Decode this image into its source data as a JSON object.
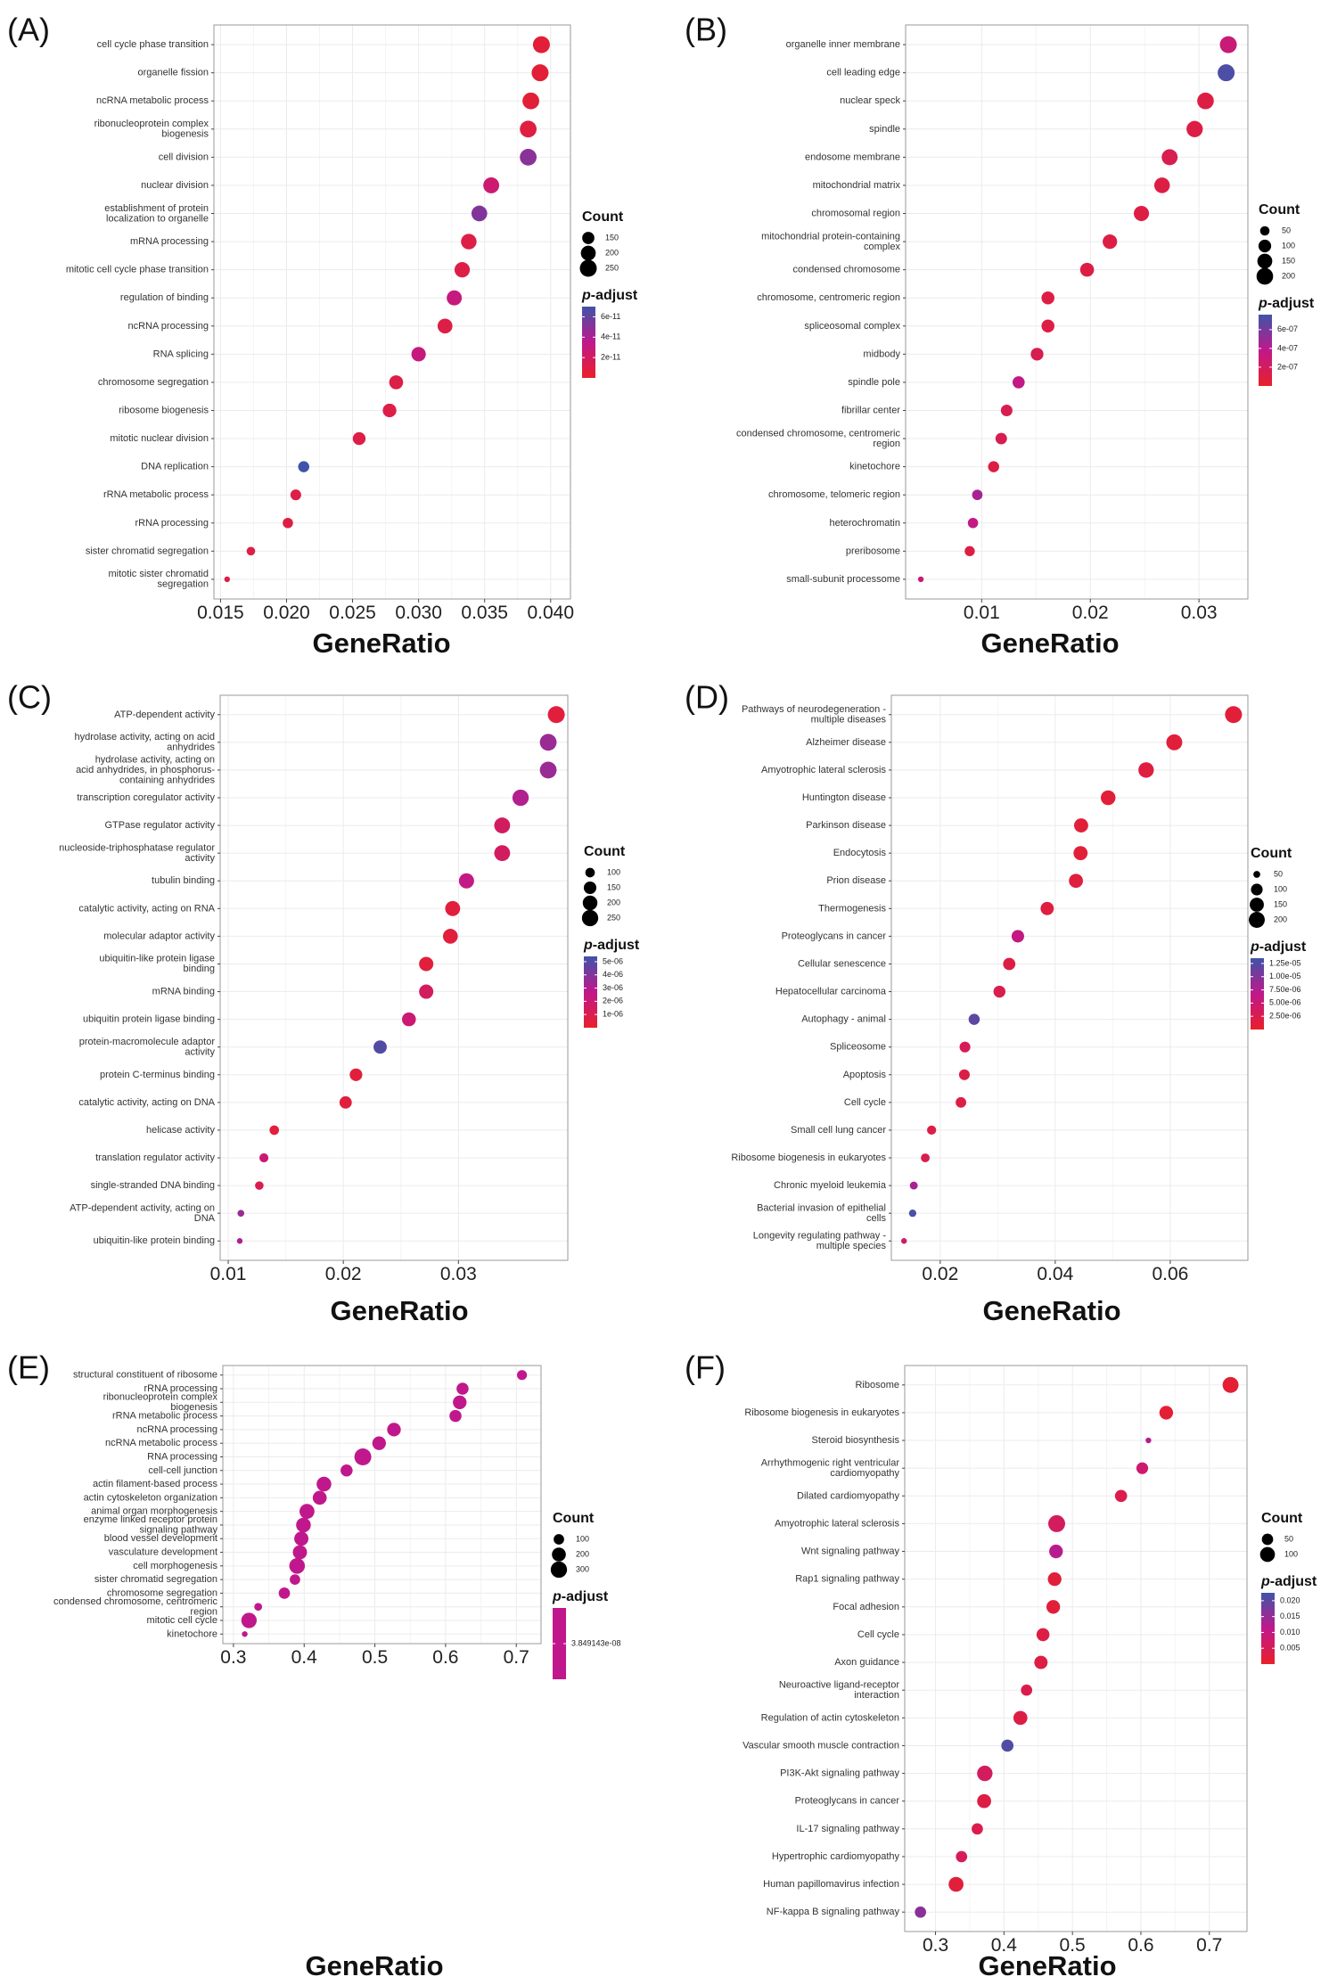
{
  "colors": {
    "low": "#e8202a",
    "mid": "#c0188c",
    "high": "#3f54a8",
    "grid": "#ebebeb",
    "frame": "#9a9a9a"
  },
  "legend": {
    "count_title": "Count",
    "p_title_italic": "p",
    "p_title_rest": "-adjust"
  },
  "chart_data": [
    {
      "type": "scatter",
      "panel_label": "(A)",
      "xlabel": "GeneRatio",
      "xlim": [
        0.0145,
        0.0415
      ],
      "xticks": [
        0.015,
        0.02,
        0.025,
        0.03,
        0.035,
        0.04
      ],
      "xtick_labels": [
        "0.015",
        "0.020",
        "0.025",
        "0.030",
        "0.035",
        "0.040"
      ],
      "categories": [
        [
          "cell cycle phase transition"
        ],
        [
          "organelle fission"
        ],
        [
          "ncRNA metabolic process"
        ],
        [
          "ribonucleoprotein complex",
          "biogenesis"
        ],
        [
          "cell division"
        ],
        [
          "nuclear division"
        ],
        [
          "establishment of protein",
          "localization to organelle"
        ],
        [
          "mRNA processing"
        ],
        [
          "mitotic cell cycle phase transition"
        ],
        [
          "regulation of binding"
        ],
        [
          "ncRNA processing"
        ],
        [
          "RNA splicing"
        ],
        [
          "chromosome segregation"
        ],
        [
          "ribosome biogenesis"
        ],
        [
          "mitotic nuclear division"
        ],
        [
          "DNA replication"
        ],
        [
          "rRNA metabolic process"
        ],
        [
          "rRNA processing"
        ],
        [
          "sister chromatid segregation"
        ],
        [
          "mitotic sister chromatid",
          "segregation"
        ]
      ],
      "x": [
        0.0393,
        0.0392,
        0.0385,
        0.0383,
        0.0383,
        0.0355,
        0.0346,
        0.0338,
        0.0333,
        0.0327,
        0.032,
        0.03,
        0.0283,
        0.0278,
        0.0255,
        0.0213,
        0.0207,
        0.0201,
        0.0173,
        0.0155
      ],
      "count": [
        250,
        250,
        245,
        245,
        245,
        225,
        220,
        215,
        210,
        205,
        200,
        190,
        180,
        175,
        160,
        135,
        130,
        125,
        110,
        100
      ],
      "p_adjust": [
        5e-12,
        5e-12,
        5e-12,
        8e-12,
        5e-11,
        2.5e-11,
        5.2e-11,
        1e-11,
        1e-11,
        3e-11,
        1e-11,
        3e-11,
        1e-11,
        1e-11,
        1e-11,
        7e-11,
        1e-11,
        1e-11,
        1e-11,
        1e-11
      ],
      "size_legend": {
        "values": [
          150,
          200,
          250
        ],
        "labels": [
          "150",
          "200",
          "250"
        ],
        "range": [
          100,
          250
        ]
      },
      "color_legend": {
        "min": 0,
        "max": 7e-11,
        "ticks": [
          6e-11,
          4e-11,
          2e-11
        ],
        "labels": [
          "6e-11",
          "4e-11",
          "2e-11"
        ]
      }
    },
    {
      "type": "scatter",
      "panel_label": "(B)",
      "xlabel": "GeneRatio",
      "xlim": [
        0.003,
        0.0345
      ],
      "xticks": [
        0.01,
        0.02,
        0.03
      ],
      "xtick_labels": [
        "0.01",
        "0.02",
        "0.03"
      ],
      "categories": [
        [
          "organelle inner membrane"
        ],
        [
          "cell leading edge"
        ],
        [
          "nuclear speck"
        ],
        [
          "spindle"
        ],
        [
          "endosome membrane"
        ],
        [
          "mitochondrial matrix"
        ],
        [
          "chromosomal region"
        ],
        [
          "mitochondrial protein-containing",
          "complex"
        ],
        [
          "condensed chromosome"
        ],
        [
          "chromosome, centromeric region"
        ],
        [
          "spliceosomal complex"
        ],
        [
          "midbody"
        ],
        [
          "spindle pole"
        ],
        [
          "fibrillar center"
        ],
        [
          "condensed chromosome, centromeric",
          "region"
        ],
        [
          "kinetochore"
        ],
        [
          "chromosome, telomeric region"
        ],
        [
          "heterochromatin"
        ],
        [
          "preribosome"
        ],
        [
          "small-subunit processome"
        ]
      ],
      "x": [
        0.0327,
        0.0325,
        0.0306,
        0.0296,
        0.0273,
        0.0266,
        0.0247,
        0.0218,
        0.0197,
        0.0161,
        0.0161,
        0.0151,
        0.0134,
        0.0123,
        0.0118,
        0.0111,
        0.0096,
        0.0092,
        0.0089,
        0.0044
      ],
      "count": [
        210,
        210,
        200,
        190,
        180,
        170,
        160,
        140,
        125,
        105,
        105,
        100,
        90,
        80,
        78,
        72,
        62,
        60,
        58,
        30
      ],
      "p_adjust": [
        3e-07,
        7.2e-07,
        1e-07,
        1e-07,
        1.5e-07,
        1e-07,
        1e-07,
        1e-07,
        1e-07,
        1e-07,
        1e-07,
        1.5e-07,
        3.5e-07,
        1.5e-07,
        1.5e-07,
        1e-07,
        4.5e-07,
        3.5e-07,
        1e-07,
        3e-07
      ],
      "size_legend": {
        "values": [
          50,
          100,
          150,
          200
        ],
        "labels": [
          "50",
          "100",
          "150",
          "200"
        ],
        "range": [
          30,
          210
        ]
      },
      "color_legend": {
        "min": 0,
        "max": 7.6e-07,
        "ticks": [
          6e-07,
          4e-07,
          2e-07
        ],
        "labels": [
          "6e-07",
          "4e-07",
          "2e-07"
        ]
      }
    },
    {
      "type": "scatter",
      "panel_label": "(C)",
      "xlabel": "GeneRatio",
      "xlim": [
        0.0093,
        0.0395
      ],
      "xticks": [
        0.01,
        0.02,
        0.03
      ],
      "xtick_labels": [
        "0.01",
        "0.02",
        "0.03"
      ],
      "categories": [
        [
          "ATP-dependent activity"
        ],
        [
          "hydrolase activity, acting on acid",
          "anhydrides"
        ],
        [
          "hydrolase activity, acting on",
          "acid anhydrides, in phosphorus-",
          "containing anhydrides"
        ],
        [
          "transcription coregulator activity"
        ],
        [
          "GTPase regulator activity"
        ],
        [
          "nucleoside-triphosphatase regulator",
          "activity"
        ],
        [
          "tubulin binding"
        ],
        [
          "catalytic activity, acting on RNA"
        ],
        [
          "molecular adaptor activity"
        ],
        [
          "ubiquitin-like protein ligase",
          "binding"
        ],
        [
          "mRNA binding"
        ],
        [
          "ubiquitin protein ligase binding"
        ],
        [
          "protein-macromolecule adaptor",
          "activity"
        ],
        [
          "protein C-terminus binding"
        ],
        [
          "catalytic activity, acting on DNA"
        ],
        [
          "helicase activity"
        ],
        [
          "translation regulator activity"
        ],
        [
          "single-stranded DNA binding"
        ],
        [
          "ATP-dependent activity, acting on",
          "DNA"
        ],
        [
          "ubiquitin-like protein binding"
        ]
      ],
      "x": [
        0.0385,
        0.0378,
        0.0378,
        0.0354,
        0.0338,
        0.0338,
        0.0307,
        0.0295,
        0.0293,
        0.0272,
        0.0272,
        0.0257,
        0.0232,
        0.0211,
        0.0202,
        0.014,
        0.0131,
        0.0127,
        0.0111,
        0.011
      ],
      "count": [
        270,
        265,
        265,
        250,
        235,
        235,
        215,
        210,
        205,
        190,
        190,
        180,
        165,
        150,
        145,
        100,
        95,
        90,
        80,
        78
      ],
      "p_adjust": [
        5e-07,
        3.5e-06,
        3.5e-06,
        3e-06,
        1.5e-06,
        1.5e-06,
        2.5e-06,
        5e-07,
        5e-07,
        5e-07,
        1.5e-06,
        2e-06,
        5e-06,
        5e-07,
        5e-07,
        5e-07,
        2e-06,
        1e-06,
        3.5e-06,
        3e-06
      ],
      "size_legend": {
        "values": [
          100,
          150,
          200,
          250
        ],
        "labels": [
          "100",
          "150",
          "200",
          "250"
        ],
        "range": [
          78,
          270
        ]
      },
      "color_legend": {
        "min": 0,
        "max": 5.4e-06,
        "ticks": [
          5e-06,
          4e-06,
          3e-06,
          2e-06,
          1e-06
        ],
        "labels": [
          "5e-06",
          "4e-06",
          "3e-06",
          "2e-06",
          "1e-06"
        ]
      }
    },
    {
      "type": "scatter",
      "panel_label": "(D)",
      "xlabel": "GeneRatio",
      "xlim": [
        0.0115,
        0.0735
      ],
      "xticks": [
        0.02,
        0.04,
        0.06
      ],
      "xtick_labels": [
        "0.02",
        "0.04",
        "0.06"
      ],
      "categories": [
        [
          "Pathways of neurodegeneration -",
          "multiple diseases"
        ],
        [
          "Alzheimer disease"
        ],
        [
          "Amyotrophic lateral sclerosis"
        ],
        [
          "Huntington disease"
        ],
        [
          "Parkinson disease"
        ],
        [
          "Endocytosis"
        ],
        [
          "Prion disease"
        ],
        [
          "Thermogenesis"
        ],
        [
          "Proteoglycans in cancer"
        ],
        [
          "Cellular senescence"
        ],
        [
          "Hepatocellular carcinoma"
        ],
        [
          "Autophagy - animal"
        ],
        [
          "Spliceosome"
        ],
        [
          "Apoptosis"
        ],
        [
          "Cell cycle"
        ],
        [
          "Small cell lung cancer"
        ],
        [
          "Ribosome biogenesis in eukaryotes"
        ],
        [
          "Chronic myeloid leukemia"
        ],
        [
          "Bacterial invasion of epithelial",
          "cells"
        ],
        [
          "Longevity regulating pathway -",
          "multiple species"
        ]
      ],
      "x": [
        0.071,
        0.0607,
        0.0558,
        0.0492,
        0.0445,
        0.0444,
        0.0436,
        0.0386,
        0.0335,
        0.032,
        0.0303,
        0.0259,
        0.0243,
        0.0242,
        0.0236,
        0.0185,
        0.0174,
        0.0154,
        0.0152,
        0.0137
      ],
      "count": [
        230,
        200,
        185,
        165,
        150,
        150,
        148,
        130,
        115,
        110,
        105,
        90,
        85,
        85,
        82,
        65,
        62,
        55,
        52,
        48
      ],
      "p_adjust": [
        1e-06,
        1e-06,
        1.5e-06,
        1e-06,
        1e-06,
        1e-06,
        1.5e-06,
        1.5e-06,
        6e-06,
        2e-06,
        2.5e-06,
        1.2e-05,
        3e-06,
        2e-06,
        2e-06,
        2e-06,
        2.5e-06,
        8e-06,
        1.3e-05,
        4.5e-06
      ],
      "size_legend": {
        "values": [
          50,
          100,
          150,
          200
        ],
        "labels": [
          "50",
          "100",
          "150",
          "200"
        ],
        "range": [
          48,
          230
        ]
      },
      "color_legend": {
        "min": 0,
        "max": 1.35e-05,
        "ticks": [
          1.25e-05,
          1e-05,
          7.5e-06,
          5e-06,
          2.5e-06
        ],
        "labels": [
          "1.25e-05",
          "1.00e-05",
          "7.50e-06",
          "5.00e-06",
          "2.50e-06"
        ]
      }
    },
    {
      "type": "scatter",
      "panel_label": "(E)",
      "xlabel": "GeneRatio",
      "xlim": [
        0.285,
        0.735
      ],
      "xticks": [
        0.3,
        0.4,
        0.5,
        0.6,
        0.7
      ],
      "xtick_labels": [
        "0.3",
        "0.4",
        "0.5",
        "0.6",
        "0.7"
      ],
      "categories": [
        [
          "structural constituent of ribosome"
        ],
        [
          "rRNA processing"
        ],
        [
          "ribonucleoprotein complex",
          "biogenesis"
        ],
        [
          "rRNA metabolic process"
        ],
        [
          "ncRNA processing"
        ],
        [
          "ncRNA metabolic process"
        ],
        [
          "RNA processing"
        ],
        [
          "cell-cell junction"
        ],
        [
          "actin filament-based process"
        ],
        [
          "actin cytoskeleton organization"
        ],
        [
          "animal organ morphogenesis"
        ],
        [
          "enzyme linked receptor protein",
          "signaling pathway"
        ],
        [
          "blood vessel development"
        ],
        [
          "vasculature development"
        ],
        [
          "cell morphogenesis"
        ],
        [
          "sister chromatid segregation"
        ],
        [
          "chromosome segregation"
        ],
        [
          "condensed chromosome, centromeric",
          "region"
        ],
        [
          "mitotic cell cycle"
        ],
        [
          "kinetochore"
        ]
      ],
      "x": [
        0.708,
        0.624,
        0.62,
        0.614,
        0.527,
        0.506,
        0.483,
        0.46,
        0.428,
        0.422,
        0.404,
        0.399,
        0.396,
        0.394,
        0.39,
        0.387,
        0.372,
        0.335,
        0.322,
        0.316
      ],
      "count": [
        90,
        140,
        190,
        140,
        190,
        190,
        330,
        140,
        230,
        200,
        240,
        230,
        210,
        210,
        270,
        100,
        120,
        60,
        260,
        50
      ],
      "p_adjust": [
        3.849143e-08,
        3.849143e-08,
        3.849143e-08,
        3.849143e-08,
        3.849143e-08,
        3.849143e-08,
        3.849143e-08,
        3.849143e-08,
        3.849143e-08,
        3.849143e-08,
        3.849143e-08,
        3.849143e-08,
        3.849143e-08,
        3.849143e-08,
        3.849143e-08,
        3.849143e-08,
        3.849143e-08,
        3.849143e-08,
        3.849143e-08,
        3.849143e-08
      ],
      "size_legend": {
        "values": [
          100,
          200,
          300
        ],
        "labels": [
          "100",
          "200",
          "300"
        ],
        "range": [
          50,
          330
        ]
      },
      "color_legend": {
        "min": 0,
        "max": 1,
        "ticks": [
          0.5
        ],
        "labels": [
          "3.849143e-08"
        ],
        "single": true
      }
    },
    {
      "type": "scatter",
      "panel_label": "(F)",
      "xlabel": "GeneRatio",
      "xlim": [
        0.255,
        0.755
      ],
      "xticks": [
        0.3,
        0.4,
        0.5,
        0.6,
        0.7
      ],
      "xtick_labels": [
        "0.3",
        "0.4",
        "0.5",
        "0.6",
        "0.7"
      ],
      "categories": [
        [
          "Ribosome"
        ],
        [
          "Ribosome biogenesis in eukaryotes"
        ],
        [
          "Steroid biosynthesis"
        ],
        [
          "Arrhythmogenic right ventricular",
          "cardiomyopathy"
        ],
        [
          "Dilated cardiomyopathy"
        ],
        [
          "Amyotrophic lateral sclerosis"
        ],
        [
          "Wnt signaling pathway"
        ],
        [
          "Rap1 signaling pathway"
        ],
        [
          "Focal adhesion"
        ],
        [
          "Cell cycle"
        ],
        [
          "Axon guidance"
        ],
        [
          "Neuroactive ligand-receptor",
          "interaction"
        ],
        [
          "Regulation of actin cytoskeleton"
        ],
        [
          "Vascular smooth muscle contraction"
        ],
        [
          "PI3K-Akt signaling pathway"
        ],
        [
          "Proteoglycans in cancer"
        ],
        [
          "IL-17 signaling pathway"
        ],
        [
          "Hypertrophic cardiomyopathy"
        ],
        [
          "Human papillomavirus infection"
        ],
        [
          "NF-kappa B signaling pathway"
        ]
      ],
      "x": [
        0.731,
        0.637,
        0.611,
        0.602,
        0.571,
        0.477,
        0.476,
        0.474,
        0.472,
        0.457,
        0.454,
        0.433,
        0.424,
        0.405,
        0.372,
        0.371,
        0.361,
        0.338,
        0.33,
        0.278
      ],
      "count": [
        120,
        80,
        20,
        55,
        60,
        140,
        80,
        80,
        80,
        70,
        75,
        50,
        85,
        60,
        110,
        85,
        50,
        50,
        100,
        50
      ],
      "p_adjust": [
        0.001,
        0.001,
        0.012,
        0.008,
        0.004,
        0.006,
        0.012,
        0.002,
        0.002,
        0.003,
        0.003,
        0.004,
        0.003,
        0.021,
        0.006,
        0.003,
        0.004,
        0.005,
        0.002,
        0.016
      ],
      "size_legend": {
        "values": [
          50,
          100
        ],
        "labels": [
          "50",
          "100"
        ],
        "range": [
          20,
          140
        ]
      },
      "color_legend": {
        "min": 0,
        "max": 0.0225,
        "ticks": [
          0.02,
          0.015,
          0.01,
          0.005
        ],
        "labels": [
          "0.020",
          "0.015",
          "0.010",
          "0.005"
        ]
      }
    }
  ]
}
